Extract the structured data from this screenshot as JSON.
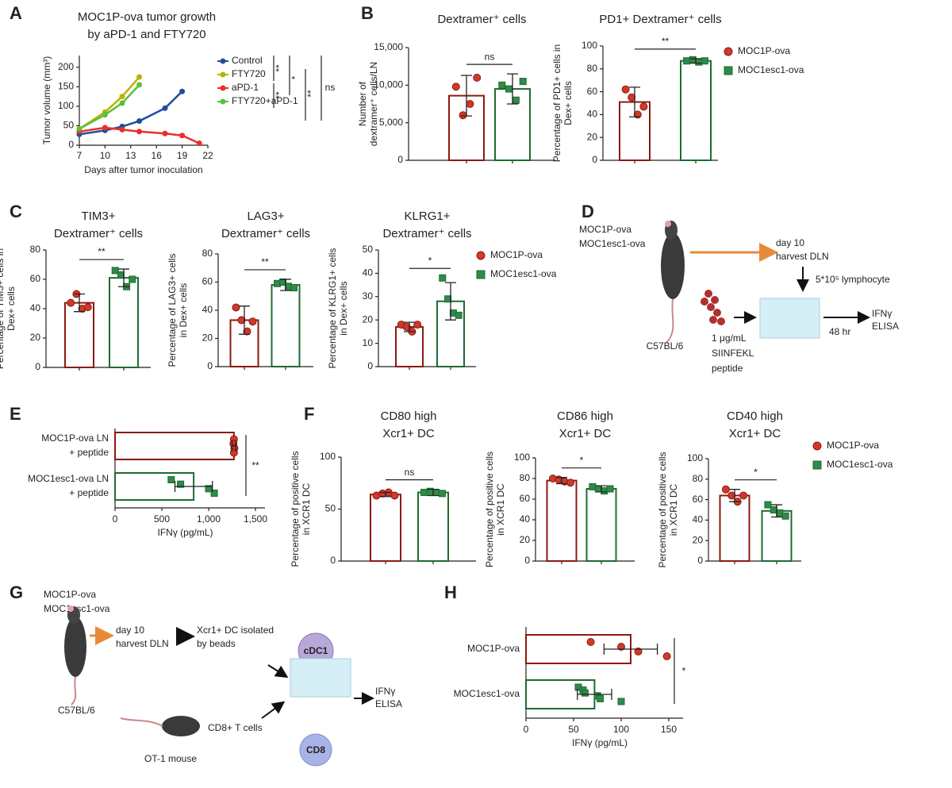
{
  "panel_labels": [
    "A",
    "B",
    "C",
    "D",
    "E",
    "F",
    "G",
    "H"
  ],
  "groups": [
    {
      "name": "MOC1P-ova",
      "color": "#d0392b",
      "edge": "#8b1a10"
    },
    {
      "name": "MOC1esc1-ova",
      "color": "#2e8b4a",
      "edge": "#1f6b30"
    }
  ],
  "chart_data": [
    {
      "type": "line",
      "title": [
        "MOC1P-ova tumor growth",
        "by aPD-1 and FTY720"
      ],
      "xlabel": "Days after tumor inoculation",
      "ylabel": [
        "Tumor volume (mm³)"
      ],
      "x": [
        7,
        10,
        12,
        14,
        17,
        19,
        21
      ],
      "series": [
        {
          "name": "Control",
          "color": "#1f4e9c",
          "values": [
            28,
            38,
            48,
            62,
            95,
            138,
            null
          ]
        },
        {
          "name": "FTY720",
          "color": "#b8b400",
          "values": [
            42,
            85,
            125,
            175,
            null,
            null,
            null
          ]
        },
        {
          "name": "aPD-1",
          "color": "#e8302a",
          "values": [
            35,
            45,
            40,
            35,
            30,
            25,
            5
          ]
        },
        {
          "name": "FTY720+aPD-1",
          "color": "#5cc13a",
          "values": [
            42,
            78,
            108,
            155,
            null,
            null,
            null
          ]
        }
      ],
      "xlim": [
        7,
        22
      ],
      "xticks": [
        7,
        10,
        13,
        16,
        19,
        22
      ],
      "ylim": [
        0,
        230
      ],
      "yticks": [
        0,
        50,
        100,
        150,
        200
      ],
      "annotations": [
        "**",
        "**",
        "*",
        "**",
        "ns"
      ]
    },
    {
      "type": "bar",
      "title": [
        "Dextramer⁺ cells"
      ],
      "ylabel": [
        "Number of",
        "dextramer⁺ cells/LN"
      ],
      "values": [
        8600,
        9500
      ],
      "errors": [
        2700,
        2000
      ],
      "points": [
        [
          9800,
          6000,
          7500,
          11000
        ],
        [
          10000,
          9500,
          8000,
          10500
        ]
      ],
      "ylim": [
        0,
        15000
      ],
      "yticks": [
        0,
        {
          "value": 5000,
          "label": "5,000"
        },
        {
          "value": 10000,
          "label": "10,000"
        },
        {
          "value": 15000,
          "label": "15,000"
        }
      ],
      "sig": "ns",
      "legend": false
    },
    {
      "type": "bar",
      "title": [
        "PD1+ Dextramer⁺ cells"
      ],
      "ylabel": [
        "Percentage of PD1+ cells in",
        "Dex+ cells"
      ],
      "values": [
        51,
        87
      ],
      "errors": [
        13,
        2
      ],
      "points": [
        [
          62,
          55,
          40,
          47
        ],
        [
          87,
          88,
          86,
          87
        ]
      ],
      "ylim": [
        0,
        100
      ],
      "yticks": [
        0,
        20,
        40,
        60,
        80,
        100
      ],
      "sig": "**",
      "legend": true
    },
    {
      "type": "bar",
      "title": [
        "TIM3+",
        "Dextramer⁺ cells"
      ],
      "ylabel": [
        "Percentage of TIM3+ cells in",
        "Dex+ cells"
      ],
      "values": [
        44,
        61
      ],
      "errors": [
        6,
        6
      ],
      "points": [
        [
          44,
          50,
          40,
          41
        ],
        [
          66,
          63,
          55,
          60
        ]
      ],
      "ylim": [
        0,
        80
      ],
      "yticks": [
        0,
        20,
        40,
        60,
        80
      ],
      "sig": "**",
      "legend": false
    },
    {
      "type": "bar",
      "title": [
        "LAG3+",
        "Dextramer⁺ cells"
      ],
      "ylabel": [
        "Percentage of LAG3+ cells",
        "in Dex+ cells"
      ],
      "values": [
        33,
        58
      ],
      "errors": [
        10,
        4
      ],
      "points": [
        [
          42,
          33,
          25,
          32
        ],
        [
          59,
          60,
          57,
          56
        ]
      ],
      "ylim": [
        0,
        80
      ],
      "yticks": [
        0,
        20,
        40,
        60,
        80
      ],
      "sig": "**",
      "legend": false
    },
    {
      "type": "bar",
      "title": [
        "KLRG1+",
        "Dextramer⁺ cells"
      ],
      "ylabel": [
        "Percentage of KLRG1+ cells",
        "in Dex+ cells"
      ],
      "values": [
        17,
        28
      ],
      "errors": [
        2,
        8
      ],
      "points": [
        [
          18,
          17,
          15,
          18
        ],
        [
          38,
          29,
          23,
          22
        ]
      ],
      "ylim": [
        0,
        50
      ],
      "yticks": [
        0,
        10,
        20,
        30,
        40,
        50
      ],
      "sig": "*",
      "legend": true
    },
    {
      "type": "hbar",
      "xlabel": "IFNγ (pg/mL)",
      "categories": [
        [
          "MOC1P-ova LN",
          "+ peptide"
        ],
        [
          "MOC1esc1-ova LN",
          "+ peptide"
        ]
      ],
      "values": [
        1270,
        840
      ],
      "errors": [
        20,
        200
      ],
      "points": [
        [
          1270,
          1265,
          1275,
          1270
        ],
        [
          600,
          700,
          1000,
          1060
        ]
      ],
      "xlim": [
        0,
        1500
      ],
      "xticks": [
        0,
        500,
        {
          "value": 1000,
          "label": "1,000"
        },
        {
          "value": 1500,
          "label": "1,500"
        }
      ],
      "sig": "**"
    },
    {
      "type": "bar",
      "title": [
        "CD80 high",
        "Xcr1+ DC"
      ],
      "ylabel": [
        "Percentage of positive cells",
        "in XCR1 DC"
      ],
      "values": [
        64,
        66
      ],
      "errors": [
        2,
        3
      ],
      "points": [
        [
          63,
          65,
          66,
          63
        ],
        [
          66,
          67,
          66,
          65
        ]
      ],
      "ylim": [
        0,
        100
      ],
      "yticks": [
        0,
        50,
        100
      ],
      "sig": "ns",
      "legend": false
    },
    {
      "type": "bar",
      "title": [
        "CD86 high",
        "Xcr1+ DC"
      ],
      "ylabel": [
        "Percentage of positive cells",
        "in XCR1 DC"
      ],
      "values": [
        78,
        70
      ],
      "errors": [
        3,
        3
      ],
      "points": [
        [
          80,
          79,
          77,
          76
        ],
        [
          72,
          70,
          68,
          70
        ]
      ],
      "ylim": [
        0,
        100
      ],
      "yticks": [
        0,
        20,
        40,
        60,
        80,
        100
      ],
      "sig": "*",
      "legend": false
    },
    {
      "type": "bar",
      "title": [
        "CD40 high",
        "Xcr1+ DC"
      ],
      "ylabel": [
        "Percentage of positive cells",
        "in XCR1 DC"
      ],
      "values": [
        64,
        49
      ],
      "errors": [
        6,
        6
      ],
      "points": [
        [
          70,
          64,
          58,
          64
        ],
        [
          55,
          50,
          47,
          44
        ]
      ],
      "ylim": [
        0,
        100
      ],
      "yticks": [
        0,
        20,
        40,
        60,
        80,
        100
      ],
      "sig": "*",
      "legend": true
    },
    {
      "type": "hbar",
      "xlabel": "IFNγ (pg/mL)",
      "categories": [
        [
          "MOC1P-ova"
        ],
        [
          "MOC1esc1-ova"
        ]
      ],
      "values": [
        110,
        72
      ],
      "errors": [
        28,
        18
      ],
      "points": [
        [
          68,
          100,
          118,
          148
        ],
        [
          55,
          60,
          62,
          75,
          78,
          100
        ]
      ],
      "xlim": [
        0,
        155
      ],
      "xticks": [
        0,
        50,
        100,
        150
      ],
      "sig": "*"
    }
  ],
  "diagram_d": {
    "strains": [
      "MOC1P-ova",
      "MOC1esc1-ova"
    ],
    "mouse": "C57BL/6",
    "step": [
      "day 10",
      "harvest DLN"
    ],
    "cells": "5*10⁵ lymphocyte",
    "peptide": [
      "1 μg/mL",
      "SIINFEKL",
      "peptide"
    ],
    "time": "48 hr",
    "readout": [
      "IFNγ",
      "ELISA"
    ]
  },
  "diagram_g": {
    "strains": [
      "MOC1P-ova",
      "MOC1esc1-ova"
    ],
    "mouse": "C57BL/6",
    "step": [
      "day 10",
      "harvest DLN"
    ],
    "isolation": [
      "Xcr1+ DC isolated",
      "by beads"
    ],
    "dc": "cDC1",
    "ot1": "OT-1 mouse",
    "tcells": "CD8+ T cells",
    "cd8": "CD8",
    "readout": [
      "IFNγ",
      "ELISA"
    ]
  }
}
